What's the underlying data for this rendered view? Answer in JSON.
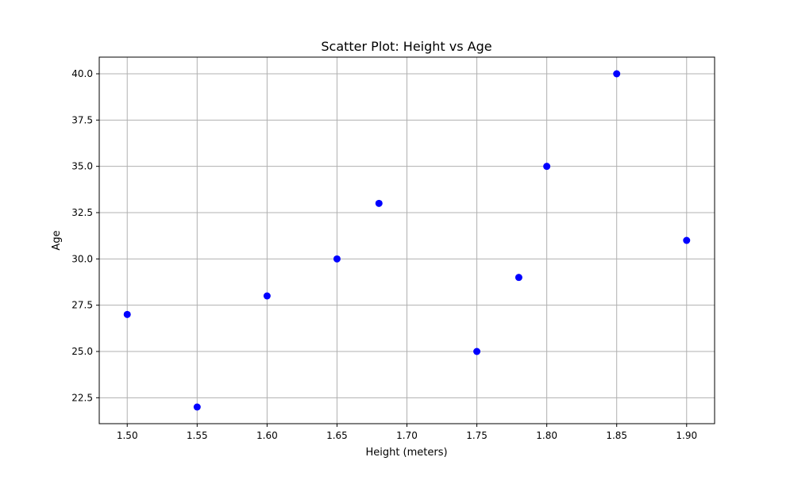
{
  "chart_data": {
    "type": "scatter",
    "title": "Scatter Plot: Height vs Age",
    "xlabel": "Height (meters)",
    "ylabel": "Age",
    "xlim": [
      1.48,
      1.92
    ],
    "ylim": [
      21.1,
      40.9
    ],
    "x_ticks": [
      1.5,
      1.55,
      1.6,
      1.65,
      1.7,
      1.75,
      1.8,
      1.85,
      1.9
    ],
    "x_tick_labels": [
      "1.50",
      "1.55",
      "1.60",
      "1.65",
      "1.70",
      "1.75",
      "1.80",
      "1.85",
      "1.90"
    ],
    "y_ticks": [
      22.5,
      25.0,
      27.5,
      30.0,
      32.5,
      35.0,
      37.5,
      40.0
    ],
    "y_tick_labels": [
      "22.5",
      "25.0",
      "27.5",
      "30.0",
      "32.5",
      "35.0",
      "37.5",
      "40.0"
    ],
    "grid": true,
    "series": [
      {
        "color": "#0000ff",
        "x": [
          1.5,
          1.55,
          1.6,
          1.65,
          1.68,
          1.75,
          1.78,
          1.8,
          1.85,
          1.9
        ],
        "y": [
          27,
          22,
          28,
          30,
          33,
          25,
          29,
          35,
          40,
          31
        ]
      }
    ]
  }
}
